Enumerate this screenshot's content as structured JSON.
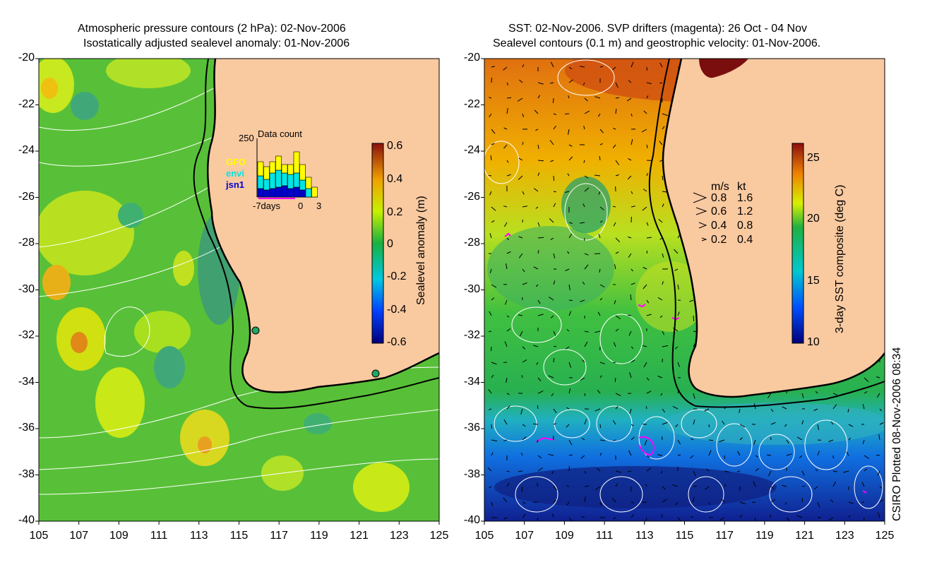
{
  "left_panel": {
    "title_line1": "Atmospheric pressure contours (2 hPa): 02-Nov-2006",
    "title_line2": "Isostatically adjusted sealevel anomaly: 01-Nov-2006",
    "y_ticks": [
      "-20",
      "-22",
      "-24",
      "-26",
      "-28",
      "-30",
      "-32",
      "-34",
      "-36",
      "-38",
      "-40"
    ],
    "x_ticks": [
      "105",
      "107",
      "109",
      "111",
      "113",
      "115",
      "117",
      "119",
      "121",
      "123",
      "125"
    ],
    "colorbar": {
      "label": "Sealevel anomaly (m)",
      "ticks": [
        "0.6",
        "0.4",
        "0.2",
        "0",
        "-0.2",
        "-0.4",
        "-0.6"
      ],
      "range": [
        -0.6,
        0.6
      ]
    },
    "inset": {
      "ymax_label": "250",
      "title": "Data count",
      "legend": [
        {
          "label": "GFO",
          "color": "#ffff00"
        },
        {
          "label": "envi",
          "color": "#00e5e5"
        },
        {
          "label": "jsn1",
          "color": "#0000cc"
        }
      ],
      "x_labels": [
        "-7days",
        "0",
        "3"
      ]
    },
    "tide_gauges": [
      {
        "lon": 115.9,
        "lat": -31.9
      },
      {
        "lon": 121.9,
        "lat": -33.8
      }
    ]
  },
  "right_panel": {
    "title_line1": "SST: 02-Nov-2006. SVP drifters (magenta): 26 Oct - 04 Nov",
    "title_line2": "Sealevel contours (0.1 m) and geostrophic velocity: 01-Nov-2006.",
    "y_ticks": [
      "-20",
      "-22",
      "-24",
      "-26",
      "-28",
      "-30",
      "-32",
      "-34",
      "-36",
      "-38",
      "-40"
    ],
    "x_ticks": [
      "105",
      "107",
      "109",
      "111",
      "113",
      "115",
      "117",
      "119",
      "121",
      "123",
      "125"
    ],
    "colorbar": {
      "label": "3-day SST composite (deg C)",
      "ticks": [
        "25",
        "20",
        "15",
        "10"
      ],
      "range": [
        10,
        26
      ]
    },
    "velocity_legend": {
      "header_ms": "m/s",
      "header_kt": "kt",
      "rows": [
        {
          "ms": "0.8",
          "kt": "1.6"
        },
        {
          "ms": "0.6",
          "kt": "1.2"
        },
        {
          "ms": "0.4",
          "kt": "0.8"
        },
        {
          "ms": "0.2",
          "kt": "0.4"
        }
      ]
    }
  },
  "credit": "CSIRO Plotted 08-Nov-2006 08:34",
  "colors": {
    "land": "#f9c9a0",
    "coast": "#000000",
    "contour": "#ffffff",
    "drifter": "#ff00ff"
  }
}
